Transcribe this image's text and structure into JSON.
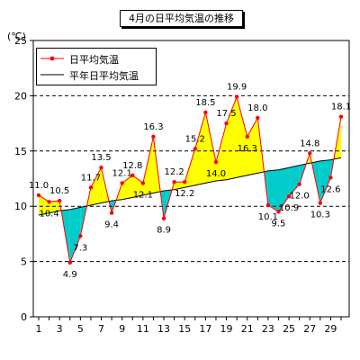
{
  "chart_data": {
    "type": "line",
    "title": "4月の日平均気温の推移",
    "ylabel": "(℃)",
    "ylim": [
      0,
      25
    ],
    "yticks": [
      0,
      5,
      10,
      15,
      20,
      25
    ],
    "xlim": [
      1,
      30
    ],
    "xtick_labels": [
      "1",
      "3",
      "5",
      "7",
      "9",
      "11",
      "13",
      "15",
      "17",
      "19",
      "21",
      "23",
      "25",
      "27",
      "29"
    ],
    "grid": "horizontal dashed",
    "legend_position": "top-left",
    "x": [
      1,
      2,
      3,
      4,
      5,
      6,
      7,
      8,
      9,
      10,
      11,
      12,
      13,
      14,
      15,
      16,
      17,
      18,
      19,
      20,
      21,
      22,
      23,
      24,
      25,
      26,
      27,
      28,
      29,
      30
    ],
    "series": [
      {
        "name": "日平均気温",
        "color": "#ff0000",
        "values": [
          11.0,
          10.4,
          10.5,
          4.9,
          7.3,
          11.7,
          13.5,
          9.4,
          12.1,
          12.8,
          12.1,
          16.3,
          8.9,
          12.2,
          12.2,
          15.2,
          18.5,
          14.0,
          17.5,
          19.9,
          16.3,
          18.0,
          10.1,
          9.5,
          10.9,
          12.0,
          14.8,
          10.3,
          12.6,
          18.1
        ],
        "labels": [
          "11.0",
          "10.4",
          "10.5",
          "4.9",
          "7.3",
          "11.7",
          "13.5",
          "9.4",
          "12.1",
          "12.8",
          "12.1",
          "16.3",
          "8.9",
          "12.2",
          "12.2",
          "15.2",
          "18.5",
          "14.0",
          "17.5",
          "19.9",
          "16.3",
          "18.0",
          "10.1",
          "9.5",
          "10.9",
          "12.0",
          "14.8",
          "10.3",
          "12.6",
          "18.1"
        ]
      },
      {
        "name": "平年日平均気温",
        "color": "#000000",
        "values": [
          9.2,
          9.4,
          9.6,
          9.7,
          9.9,
          10.1,
          10.3,
          10.5,
          10.6,
          10.8,
          11.0,
          11.2,
          11.4,
          11.5,
          11.7,
          11.9,
          12.1,
          12.3,
          12.4,
          12.6,
          12.8,
          13.0,
          13.2,
          13.3,
          13.5,
          13.7,
          13.9,
          14.1,
          14.2,
          14.4
        ]
      }
    ],
    "fill_above_color": "#ffff00",
    "fill_below_color": "#00cccc"
  }
}
